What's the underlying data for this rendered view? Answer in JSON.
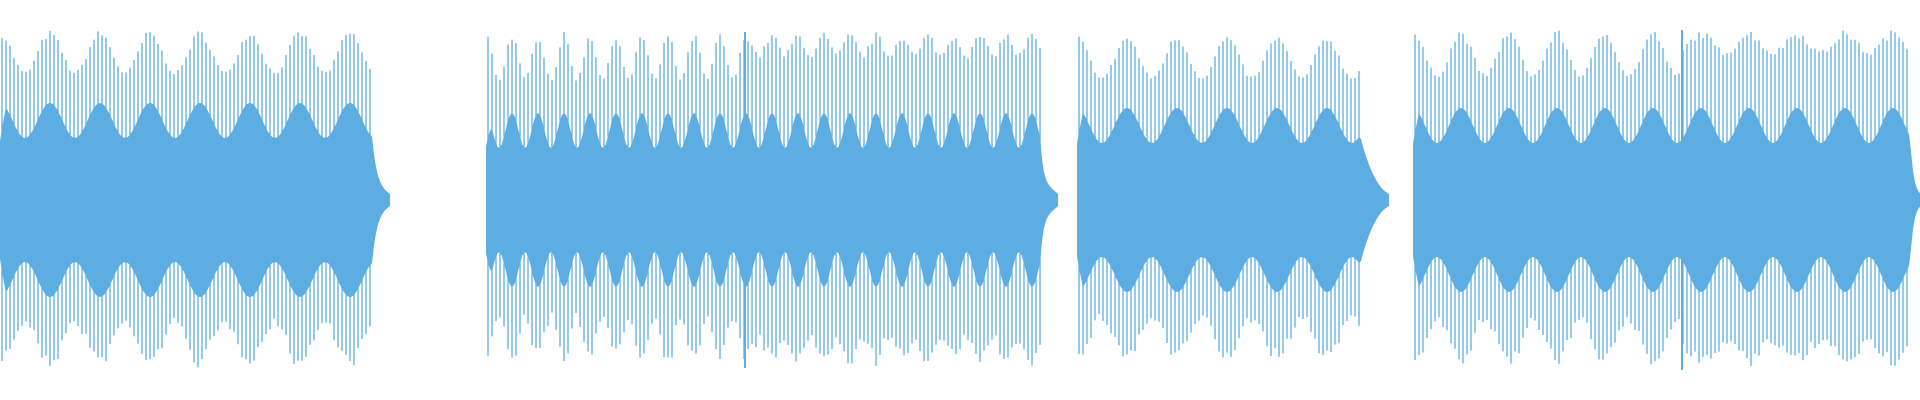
{
  "waveform": {
    "color": "#5dade2",
    "background": "#ffffff",
    "segment_count": 4
  }
}
